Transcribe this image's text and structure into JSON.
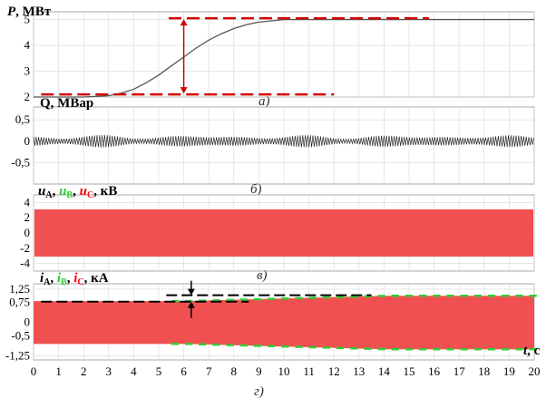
{
  "x_axis": {
    "label_var": "t",
    "label_unit": ", с",
    "min": 0,
    "max": 20,
    "ticks": [
      "0",
      "1",
      "2",
      "3",
      "4",
      "5",
      "6",
      "7",
      "8",
      "9",
      "10",
      "11",
      "12",
      "13",
      "14",
      "15",
      "16",
      "17",
      "18",
      "19",
      "20"
    ]
  },
  "colors": {
    "phase_a": "#000000",
    "phase_b": "#33cc33",
    "phase_c": "#ff0000",
    "fill": "#f05050",
    "curve": "#555555",
    "annotation": "#d40000",
    "grid": "#d8d8d8"
  },
  "chart_data": [
    {
      "type": "line",
      "caption": "а)",
      "ylabel_var": "P",
      "ylabel_unit": ", МВт",
      "ylim": [
        2,
        5.3
      ],
      "yticks": [
        "2",
        "3",
        "4",
        "5"
      ],
      "ytick_values": [
        2,
        3,
        4,
        5
      ],
      "grid": true,
      "series": [
        {
          "x": [
            0,
            1,
            2,
            3,
            3.5,
            4,
            4.5,
            5,
            5.5,
            6,
            6.5,
            7,
            7.5,
            8,
            8.5,
            9,
            9.5,
            10,
            11,
            12,
            14,
            16,
            18,
            20
          ],
          "y": [
            2.0,
            2.0,
            2.0,
            2.05,
            2.15,
            2.3,
            2.55,
            2.85,
            3.2,
            3.55,
            3.9,
            4.2,
            4.45,
            4.65,
            4.8,
            4.9,
            4.95,
            5.0,
            5.0,
            5.0,
            5.0,
            5.0,
            5.0,
            5.0
          ]
        }
      ],
      "annotations": {
        "low_level": 2.1,
        "high_level": 5.05,
        "arrow_x": 6
      }
    },
    {
      "type": "line",
      "caption": "б)",
      "ylabel": "Q, МВар",
      "ylim": [
        -1.0,
        0.8
      ],
      "yticks": [
        "0,5",
        "0",
        "-0,5"
      ],
      "ytick_values": [
        0.5,
        0,
        -0.5
      ],
      "grid": true,
      "series": [
        {
          "description_amplitude": 0.12,
          "mean": 0
        }
      ]
    },
    {
      "type": "area",
      "caption": "в)",
      "ylabel_unit": ", кВ",
      "ylim": [
        -5,
        5
      ],
      "yticks": [
        "4",
        "2",
        "0",
        "-2",
        "-4"
      ],
      "ytick_values": [
        4,
        2,
        0,
        -2,
        -4
      ],
      "grid": true,
      "series": [
        {
          "name_var": "u",
          "name_sub": "A",
          "amplitude": 3.1
        },
        {
          "name_var": "u",
          "name_sub": "B",
          "amplitude": 3.1
        },
        {
          "name_var": "u",
          "name_sub": "C",
          "amplitude": 3.1
        }
      ]
    },
    {
      "type": "area",
      "caption": "г)",
      "ylabel_unit": ", кА",
      "ylim": [
        -1.4,
        1.45
      ],
      "yticks": [
        "1,25",
        "0,75",
        "0",
        "-0,5",
        "-1,25"
      ],
      "ytick_values": [
        1.25,
        0.75,
        0,
        -0.5,
        -1.25
      ],
      "grid": true,
      "series": [
        {
          "name_var": "i",
          "name_sub": "A",
          "amplitude_start": 0.8,
          "amplitude_end": 1.0
        },
        {
          "name_var": "i",
          "name_sub": "B",
          "amplitude_start": 0.8,
          "amplitude_end": 1.0
        },
        {
          "name_var": "i",
          "name_sub": "C",
          "amplitude_start": 0.8,
          "amplitude_end": 1.0
        }
      ],
      "annotations": {
        "low_level": 0.78,
        "high_level": 1.02,
        "arrow_x": 6.3
      }
    }
  ]
}
